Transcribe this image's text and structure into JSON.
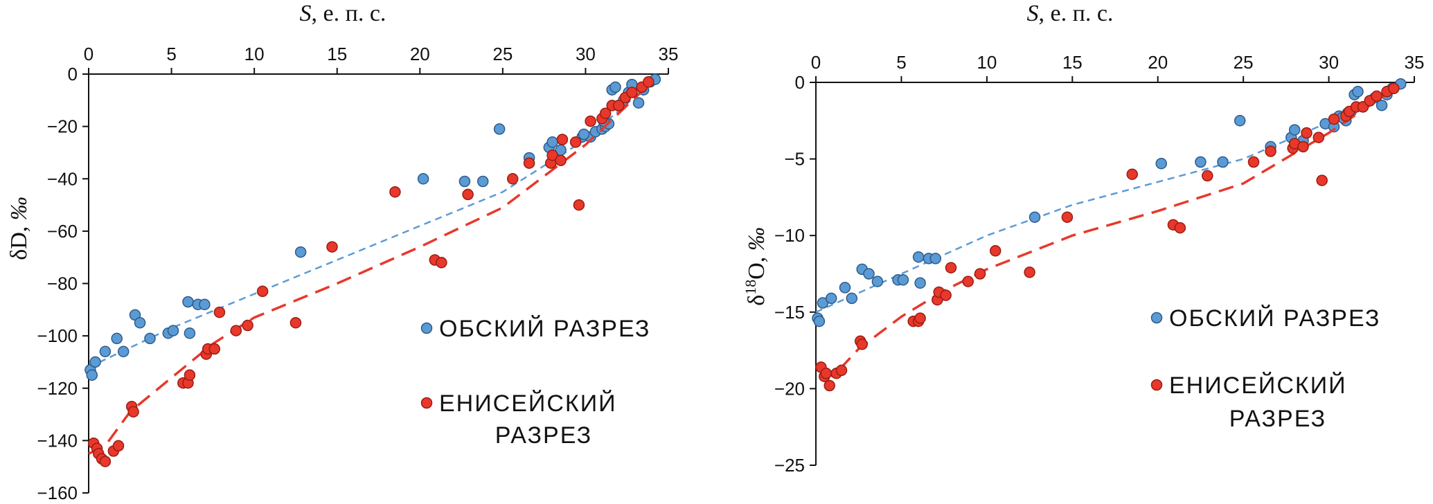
{
  "chart_data": [
    {
      "type": "scatter",
      "title": "",
      "xlabel": "S, е. п. с.",
      "xlabel_main": "S",
      "xlabel_rest": ", е. п. с.",
      "ylabel": "δD, ‰",
      "ylabel_main": "δD, ",
      "ylabel_unit": "‰",
      "xlim": [
        0,
        35
      ],
      "ylim": [
        -160,
        0
      ],
      "x_axis_position": "top",
      "xticks": [
        0,
        5,
        10,
        15,
        20,
        25,
        30,
        35
      ],
      "xtick_labels": [
        "0",
        "5",
        "10",
        "15",
        "20",
        "25",
        "30",
        "35"
      ],
      "yticks": [
        0,
        -20,
        -40,
        -60,
        -80,
        -100,
        -120,
        -140,
        -160
      ],
      "ytick_labels": [
        "0",
        "−20",
        "−40",
        "−60",
        "−80",
        "−100",
        "−120",
        "−140",
        "−160"
      ],
      "grid": false,
      "legend_position": "right-center",
      "series": [
        {
          "name": "ОБСКИЙ РАЗРЕЗ",
          "color": "#5b9bd5",
          "trend": [
            [
              0,
              -112
            ],
            [
              5,
              -97
            ],
            [
              10,
              -84
            ],
            [
              15,
              -71
            ],
            [
              20,
              -58
            ],
            [
              25,
              -45
            ],
            [
              30,
              -25
            ],
            [
              34,
              -3
            ]
          ],
          "points": [
            [
              0.1,
              -113
            ],
            [
              0.2,
              -115
            ],
            [
              0.4,
              -110
            ],
            [
              1.0,
              -106
            ],
            [
              1.7,
              -101
            ],
            [
              2.1,
              -106
            ],
            [
              2.8,
              -92
            ],
            [
              3.1,
              -95
            ],
            [
              3.7,
              -101
            ],
            [
              4.8,
              -99
            ],
            [
              5.1,
              -98
            ],
            [
              6.0,
              -87
            ],
            [
              6.1,
              -99
            ],
            [
              6.6,
              -88
            ],
            [
              7.0,
              -88
            ],
            [
              12.8,
              -68
            ],
            [
              20.2,
              -40
            ],
            [
              22.7,
              -41
            ],
            [
              23.8,
              -41
            ],
            [
              24.8,
              -21
            ],
            [
              26.6,
              -32
            ],
            [
              27.8,
              -28
            ],
            [
              28.0,
              -26
            ],
            [
              28.5,
              -29
            ],
            [
              29.8,
              -24
            ],
            [
              30.3,
              -24
            ],
            [
              30.6,
              -22
            ],
            [
              31.0,
              -21
            ],
            [
              31.2,
              -20
            ],
            [
              31.4,
              -19
            ],
            [
              31.6,
              -6
            ],
            [
              31.8,
              -5
            ],
            [
              32.0,
              -12
            ],
            [
              32.3,
              -10
            ],
            [
              32.6,
              -7
            ],
            [
              32.8,
              -4
            ],
            [
              33.2,
              -11
            ],
            [
              33.5,
              -6
            ],
            [
              33.9,
              -3
            ],
            [
              34.2,
              -2
            ],
            [
              29.9,
              -23
            ],
            [
              31.1,
              -18
            ]
          ]
        },
        {
          "name": "ЕНИСЕЙСКИЙ РАЗРЕЗ",
          "name_line1": "ЕНИСЕЙСКИЙ",
          "name_line2": "РАЗРЕЗ",
          "color": "#e8382b",
          "trend": [
            [
              0,
              -145
            ],
            [
              1,
              -142
            ],
            [
              2.5,
              -129
            ],
            [
              5,
              -116
            ],
            [
              7.5,
              -103
            ],
            [
              10,
              -93
            ],
            [
              15,
              -80
            ],
            [
              20,
              -66
            ],
            [
              25,
              -51
            ],
            [
              30,
              -27
            ],
            [
              34,
              -3
            ]
          ],
          "points": [
            [
              0.3,
              -141
            ],
            [
              0.5,
              -143
            ],
            [
              0.6,
              -145
            ],
            [
              0.8,
              -147
            ],
            [
              1.0,
              -148
            ],
            [
              1.5,
              -144
            ],
            [
              1.8,
              -142
            ],
            [
              2.6,
              -127
            ],
            [
              2.7,
              -129
            ],
            [
              5.7,
              -118
            ],
            [
              6.0,
              -118
            ],
            [
              6.1,
              -115
            ],
            [
              7.1,
              -107
            ],
            [
              7.2,
              -105
            ],
            [
              7.6,
              -105
            ],
            [
              7.9,
              -91
            ],
            [
              8.9,
              -98
            ],
            [
              9.6,
              -96
            ],
            [
              10.5,
              -83
            ],
            [
              12.5,
              -95
            ],
            [
              14.7,
              -66
            ],
            [
              18.5,
              -45
            ],
            [
              20.9,
              -71
            ],
            [
              21.3,
              -72
            ],
            [
              22.9,
              -46
            ],
            [
              25.6,
              -40
            ],
            [
              26.6,
              -34
            ],
            [
              27.9,
              -34
            ],
            [
              28.0,
              -31
            ],
            [
              28.5,
              -33
            ],
            [
              28.6,
              -25
            ],
            [
              29.4,
              -26
            ],
            [
              29.6,
              -50
            ],
            [
              30.3,
              -18
            ],
            [
              31.0,
              -17
            ],
            [
              31.2,
              -15
            ],
            [
              31.6,
              -12
            ],
            [
              32.0,
              -12
            ],
            [
              32.4,
              -9
            ],
            [
              32.8,
              -7
            ],
            [
              33.4,
              -5
            ],
            [
              33.8,
              -3
            ]
          ]
        }
      ]
    },
    {
      "type": "scatter",
      "title": "",
      "xlabel": "S, е. п. с.",
      "xlabel_main": "S",
      "xlabel_rest": ", е. п. с.",
      "ylabel": "δ18O, ‰",
      "ylabel_main": "δ",
      "ylabel_sup": "18",
      "ylabel_mid": "O, ",
      "ylabel_unit": "‰",
      "xlim": [
        0,
        35
      ],
      "ylim": [
        -25,
        0
      ],
      "x_axis_position": "top",
      "xticks": [
        0,
        5,
        10,
        15,
        20,
        25,
        30,
        35
      ],
      "xtick_labels": [
        "0",
        "5",
        "10",
        "15",
        "20",
        "25",
        "30",
        "35"
      ],
      "yticks": [
        0,
        -5,
        -10,
        -15,
        -20,
        -25
      ],
      "ytick_labels": [
        "0",
        "−5",
        "−10",
        "−15",
        "−20",
        "−25"
      ],
      "grid": false,
      "legend_position": "right-center",
      "series": [
        {
          "name": "ОБСКИЙ РАЗРЕЗ",
          "color": "#5b9bd5",
          "trend": [
            [
              0,
              -15
            ],
            [
              5,
              -12.5
            ],
            [
              10,
              -10
            ],
            [
              15,
              -8
            ],
            [
              20,
              -6.5
            ],
            [
              25,
              -5
            ],
            [
              30,
              -2.6
            ],
            [
              34,
              -0.2
            ]
          ],
          "points": [
            [
              0.1,
              -15.4
            ],
            [
              0.2,
              -15.6
            ],
            [
              0.4,
              -14.4
            ],
            [
              0.9,
              -14.1
            ],
            [
              1.7,
              -13.4
            ],
            [
              2.1,
              -14.1
            ],
            [
              2.7,
              -12.2
            ],
            [
              3.1,
              -12.5
            ],
            [
              3.6,
              -13.0
            ],
            [
              4.8,
              -12.9
            ],
            [
              5.1,
              -12.9
            ],
            [
              6.0,
              -11.4
            ],
            [
              6.1,
              -13.1
            ],
            [
              6.6,
              -11.5
            ],
            [
              7.0,
              -11.5
            ],
            [
              12.8,
              -8.8
            ],
            [
              20.2,
              -5.3
            ],
            [
              22.5,
              -5.2
            ],
            [
              23.8,
              -5.2
            ],
            [
              24.8,
              -2.5
            ],
            [
              26.6,
              -4.2
            ],
            [
              27.8,
              -3.6
            ],
            [
              28.0,
              -3.1
            ],
            [
              28.5,
              -3.8
            ],
            [
              29.8,
              -2.7
            ],
            [
              30.3,
              -2.9
            ],
            [
              30.6,
              -2.2
            ],
            [
              31.0,
              -2.5
            ],
            [
              31.3,
              -1.9
            ],
            [
              31.5,
              -0.8
            ],
            [
              31.7,
              -0.6
            ],
            [
              32.0,
              -1.6
            ],
            [
              32.4,
              -1.2
            ],
            [
              32.7,
              -1.0
            ],
            [
              33.1,
              -1.5
            ],
            [
              33.4,
              -0.8
            ],
            [
              33.7,
              -0.4
            ],
            [
              34.2,
              -0.1
            ],
            [
              30.8,
              -2.3
            ],
            [
              31.1,
              -2.0
            ]
          ]
        },
        {
          "name": "ЕНИСЕЙСКИЙ РАЗРЕЗ",
          "name_line1": "ЕНИСЕЙСКИЙ",
          "name_line2": "РАЗРЕЗ",
          "color": "#e8382b",
          "trend": [
            [
              0.3,
              -18.8
            ],
            [
              1,
              -19.2
            ],
            [
              2.5,
              -17.4
            ],
            [
              5,
              -15.3
            ],
            [
              7.5,
              -13.6
            ],
            [
              10,
              -12.2
            ],
            [
              15,
              -10
            ],
            [
              20,
              -8.4
            ],
            [
              25,
              -6.6
            ],
            [
              30,
              -3.3
            ],
            [
              34,
              -0.3
            ]
          ],
          "points": [
            [
              0.3,
              -18.6
            ],
            [
              0.5,
              -19.2
            ],
            [
              0.6,
              -19.0
            ],
            [
              0.8,
              -19.8
            ],
            [
              1.2,
              -19.0
            ],
            [
              1.5,
              -18.8
            ],
            [
              2.6,
              -16.9
            ],
            [
              2.7,
              -17.1
            ],
            [
              5.7,
              -15.6
            ],
            [
              6.0,
              -15.6
            ],
            [
              6.1,
              -15.4
            ],
            [
              7.1,
              -14.2
            ],
            [
              7.2,
              -13.7
            ],
            [
              7.6,
              -13.9
            ],
            [
              7.9,
              -12.1
            ],
            [
              8.9,
              -13.0
            ],
            [
              9.6,
              -12.5
            ],
            [
              10.5,
              -11.0
            ],
            [
              12.5,
              -12.4
            ],
            [
              14.7,
              -8.8
            ],
            [
              18.5,
              -6.0
            ],
            [
              20.9,
              -9.3
            ],
            [
              21.3,
              -9.5
            ],
            [
              22.9,
              -6.1
            ],
            [
              25.6,
              -5.2
            ],
            [
              26.6,
              -4.5
            ],
            [
              27.9,
              -4.3
            ],
            [
              28.0,
              -4.0
            ],
            [
              28.5,
              -4.2
            ],
            [
              28.7,
              -3.3
            ],
            [
              29.4,
              -3.6
            ],
            [
              29.6,
              -6.4
            ],
            [
              30.3,
              -2.4
            ],
            [
              31.0,
              -2.2
            ],
            [
              31.2,
              -1.9
            ],
            [
              31.6,
              -1.6
            ],
            [
              32.0,
              -1.6
            ],
            [
              32.4,
              -1.2
            ],
            [
              32.8,
              -0.9
            ],
            [
              33.4,
              -0.6
            ],
            [
              33.8,
              -0.4
            ]
          ]
        }
      ]
    }
  ]
}
